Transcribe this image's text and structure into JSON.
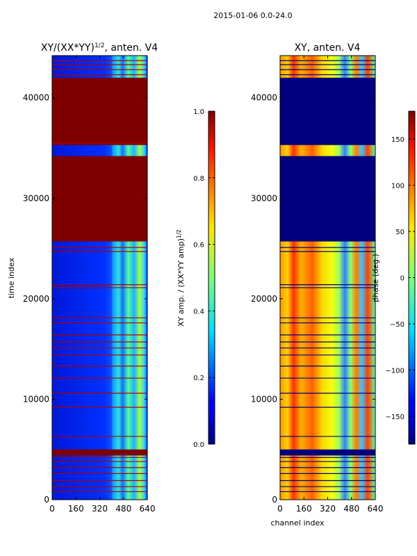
{
  "suptitle": "2015-01-06 0.0-24.0",
  "chart_data": [
    {
      "type": "heatmap",
      "title": "XY/(XX*YY)^{1/2}, anten. V4",
      "title_main": "XY/(XX*YY)",
      "title_exp": "1/2",
      "title_tail": ", anten. V4",
      "xlabel": "",
      "ylabel": "time index",
      "xlim": [
        0,
        640
      ],
      "ylim": [
        0,
        44200
      ],
      "xticks": [
        0,
        160,
        320,
        480,
        640
      ],
      "yticks": [
        0,
        10000,
        20000,
        30000,
        40000
      ],
      "colorbar": {
        "label": "XY amp. / (XX*YY amp)^{1/2}",
        "label_main": "XY amp. / (XX*YY amp)",
        "label_exp": "1/2",
        "range": [
          0.0,
          1.0
        ],
        "ticks": [
          "0.0",
          "0.2",
          "0.4",
          "0.6",
          "0.8",
          "1.0"
        ],
        "colormap": "jet"
      },
      "saturated_bands": [
        [
          4400,
          5000
        ],
        [
          25700,
          34200
        ],
        [
          35300,
          42000
        ]
      ]
    },
    {
      "type": "heatmap",
      "title": "XY, anten. V4",
      "xlabel": "channel index",
      "ylabel": "",
      "xlim": [
        0,
        640
      ],
      "ylim": [
        0,
        44200
      ],
      "xticks": [
        0,
        160,
        320,
        480,
        640
      ],
      "yticks": [
        0,
        10000,
        20000,
        30000,
        40000
      ],
      "colorbar": {
        "label": "phase (deg.)",
        "range": [
          -180,
          180
        ],
        "ticks": [
          "−150",
          "−100",
          "−50",
          "0",
          "50",
          "100",
          "150"
        ],
        "colormap": "jet"
      },
      "flagged_bands": [
        [
          4400,
          5000
        ],
        [
          25700,
          34200
        ],
        [
          35300,
          42000
        ]
      ]
    }
  ]
}
